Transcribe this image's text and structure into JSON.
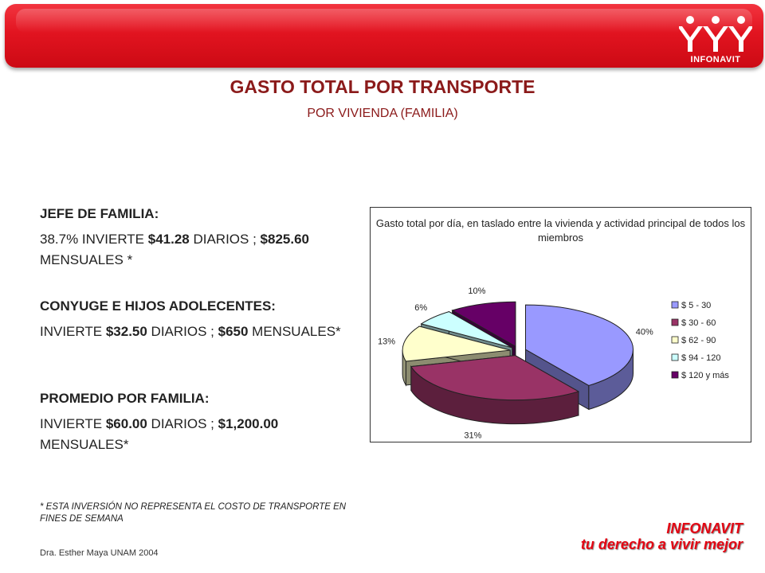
{
  "header": {
    "logo_text": "INFONAVIT",
    "title": "GASTO TOTAL POR TRANSPORTE",
    "subtitle": "POR VIVIENDA (FAMILIA)"
  },
  "sections": [
    {
      "heading": "JEFE DE FAMILIA:",
      "parts": [
        "38.7% INVIERTE ",
        "$41.28",
        " DIARIOS ; ",
        "$825.60",
        " MENSUALES *"
      ]
    },
    {
      "heading": "CONYUGE E HIJOS ADOLECENTES:",
      "parts": [
        "INVIERTE ",
        "$32.50",
        " DIARIOS ; ",
        "$650",
        " MENSUALES*"
      ]
    },
    {
      "heading": "PROMEDIO POR FAMILIA:",
      "parts": [
        "INVIERTE ",
        "$60.00",
        " DIARIOS ; ",
        "$1,200.00",
        " MENSUALES*"
      ]
    }
  ],
  "footnote": "* ESTA INVERSIÓN NO REPRESENTA EL COSTO DE TRANSPORTE EN FINES DE SEMANA",
  "credit": "Dra. Esther Maya UNAM 2004",
  "brand": {
    "name": "INFONAVIT",
    "slogan": "tu derecho a vivir mejor"
  },
  "colors": {
    "banner_red": "#e21420",
    "title_red": "#8b1a1a"
  },
  "chart_data": {
    "type": "pie",
    "title": "Gasto total por día, en taslado entre la vivienda y actividad principal de todos los miembros",
    "categories": [
      "$ 5 - 30",
      "$ 30 - 60",
      "$ 62 - 90",
      "$ 94 - 120",
      "$ 120 y más"
    ],
    "values": [
      40,
      31,
      13,
      6,
      10
    ],
    "labels": [
      "40%",
      "31%",
      "13%",
      "6%",
      "10%"
    ],
    "colors": [
      "#9999ff",
      "#993366",
      "#ffffcc",
      "#ccffff",
      "#660066"
    ],
    "legend": "right",
    "style": "3d-exploded"
  }
}
